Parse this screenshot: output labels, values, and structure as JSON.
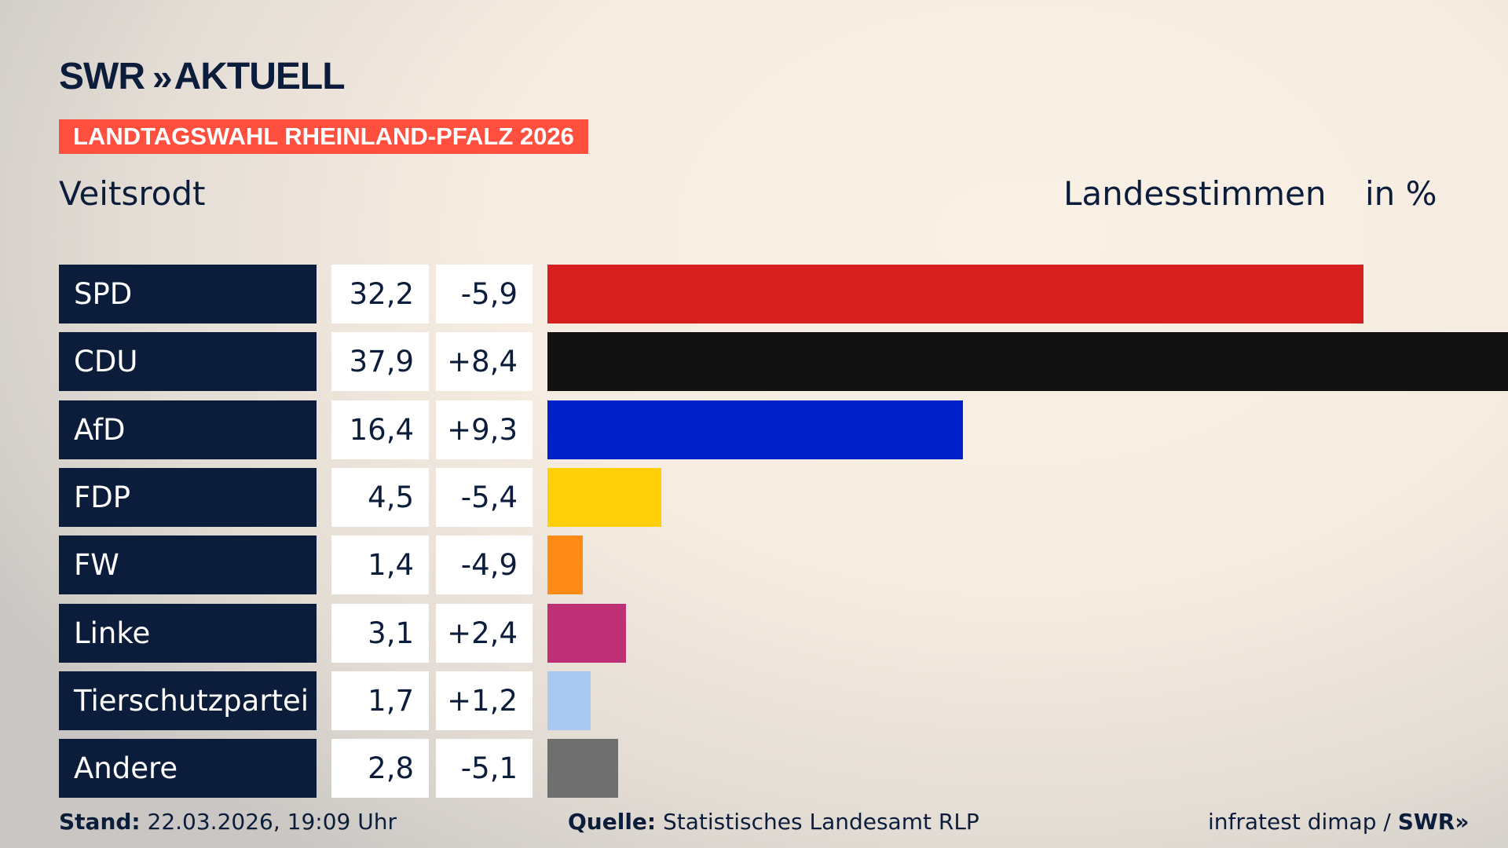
{
  "header": {
    "logo": "SWR» AKTUELL",
    "logo_brand": "SWR",
    "logo_arrows": "»",
    "logo_word": "AKTUELL",
    "banner": "LANDTAGSWAHL RHEINLAND-PFALZ 2026",
    "banner_color": "#ff4f3f"
  },
  "chart_data": {
    "type": "bar",
    "orientation": "horizontal",
    "title": "Veitsrodt",
    "measure": "Landesstimmen",
    "unit": "in %",
    "categories": [
      "SPD",
      "CDU",
      "AfD",
      "FDP",
      "FW",
      "Linke",
      "Tierschutzpartei",
      "Andere"
    ],
    "values": [
      32.2,
      37.9,
      16.4,
      4.5,
      1.4,
      3.1,
      1.7,
      2.8
    ],
    "value_labels": [
      "32,2",
      "37,9",
      "16,4",
      "4,5",
      "1,4",
      "3,1",
      "1,7",
      "2,8"
    ],
    "change_labels": [
      "-5,9",
      "+8,4",
      "+9,3",
      "-5,4",
      "-4,9",
      "+2,4",
      "+1,2",
      "-5,1"
    ],
    "changes": [
      -5.9,
      8.4,
      9.3,
      -5.4,
      -4.9,
      2.4,
      1.2,
      -5.1
    ],
    "colors": [
      "#d81f1f",
      "#121212",
      "#0021c7",
      "#ffcf0a",
      "#ff8b17",
      "#bd3075",
      "#a9c8f0",
      "#6f6f6f"
    ],
    "xlim": [
      0,
      37.9
    ],
    "grid": false
  },
  "footer": {
    "stand_label": "Stand:",
    "stand_value": " 22.03.2026, 19:09 Uhr",
    "source_label": "Quelle:",
    "source_value": " Statistisches Landesamt RLP",
    "credit": "infratest dimap / ",
    "credit_brand": "SWR»"
  }
}
